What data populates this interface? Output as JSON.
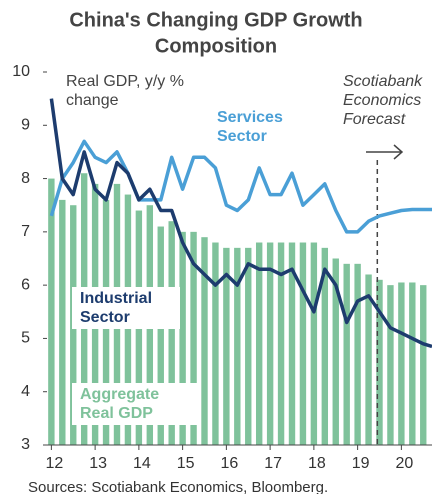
{
  "chart_data": {
    "type": "bar",
    "title": "China's Changing GDP Growth Composition",
    "source": "Sources: Scotiabank Economics, Bloomberg.",
    "annotations": [
      {
        "text": "Real GDP, y/y % change"
      },
      {
        "text": "Scotiabank Economics Forecast",
        "x": 19.45
      }
    ],
    "xlim": [
      11.9,
      20.7
    ],
    "xticks": [
      12,
      13,
      14,
      15,
      16,
      17,
      18,
      19,
      20
    ],
    "ylim": [
      3,
      10
    ],
    "yticks": [
      3,
      4,
      5,
      6,
      7,
      8,
      9,
      10
    ],
    "series": [
      {
        "name": "Aggregate Real GDP",
        "type": "bar",
        "color": "#7fc29b",
        "x": [
          12,
          12.25,
          12.5,
          12.75,
          13,
          13.25,
          13.5,
          13.75,
          14,
          14.25,
          14.5,
          14.75,
          15,
          15.25,
          15.5,
          15.75,
          16,
          16.25,
          16.5,
          16.75,
          17,
          17.25,
          17.5,
          17.75,
          18,
          18.25,
          18.5,
          18.75,
          19,
          19.25,
          19.5,
          19.75,
          20,
          20.25,
          20.5
        ],
        "values": [
          8.0,
          7.6,
          7.5,
          8.1,
          7.9,
          7.6,
          7.9,
          7.7,
          7.4,
          7.5,
          7.1,
          7.2,
          7.0,
          7.0,
          6.9,
          6.8,
          6.7,
          6.7,
          6.7,
          6.8,
          6.8,
          6.8,
          6.8,
          6.8,
          6.8,
          6.7,
          6.5,
          6.4,
          6.4,
          6.2,
          6.1,
          6.0,
          6.05,
          6.05,
          6.0
        ]
      },
      {
        "name": "Services Sector",
        "type": "line",
        "color": "#4a9fd6",
        "x": [
          12,
          12.25,
          12.5,
          12.75,
          13,
          13.25,
          13.5,
          13.75,
          14,
          14.25,
          14.5,
          14.75,
          15,
          15.25,
          15.5,
          15.75,
          16,
          16.25,
          16.5,
          16.75,
          17,
          17.25,
          17.5,
          17.75,
          18,
          18.25,
          18.5,
          18.75,
          19,
          19.25,
          19.5,
          19.75,
          20,
          20.25,
          20.5,
          20.7
        ],
        "values": [
          7.3,
          8.0,
          8.3,
          8.7,
          8.4,
          8.3,
          8.5,
          8.1,
          7.6,
          7.6,
          7.6,
          8.4,
          7.8,
          8.4,
          8.4,
          8.2,
          7.5,
          7.4,
          7.6,
          8.2,
          7.7,
          7.7,
          8.1,
          7.5,
          7.7,
          7.9,
          7.4,
          7.0,
          7.0,
          7.2,
          7.3,
          7.35,
          7.4,
          7.42,
          7.42,
          7.42
        ]
      },
      {
        "name": "Industrial Sector",
        "type": "line",
        "color": "#1d3c6e",
        "x": [
          12,
          12.25,
          12.5,
          12.75,
          13,
          13.25,
          13.5,
          13.75,
          14,
          14.25,
          14.5,
          14.75,
          15,
          15.25,
          15.5,
          15.75,
          16,
          16.25,
          16.5,
          16.75,
          17,
          17.25,
          17.5,
          17.75,
          18,
          18.25,
          18.5,
          18.75,
          19,
          19.25,
          19.5,
          19.75,
          20,
          20.25,
          20.5,
          20.7
        ],
        "values": [
          9.5,
          8.0,
          7.7,
          8.5,
          7.8,
          7.6,
          8.3,
          8.1,
          7.6,
          7.8,
          7.4,
          7.4,
          6.8,
          6.4,
          6.2,
          6.0,
          6.2,
          6.0,
          6.4,
          6.3,
          6.3,
          6.2,
          6.3,
          5.9,
          5.5,
          6.3,
          6.0,
          5.3,
          5.7,
          5.8,
          5.5,
          5.2,
          5.1,
          5.0,
          4.9,
          4.85
        ]
      }
    ]
  }
}
